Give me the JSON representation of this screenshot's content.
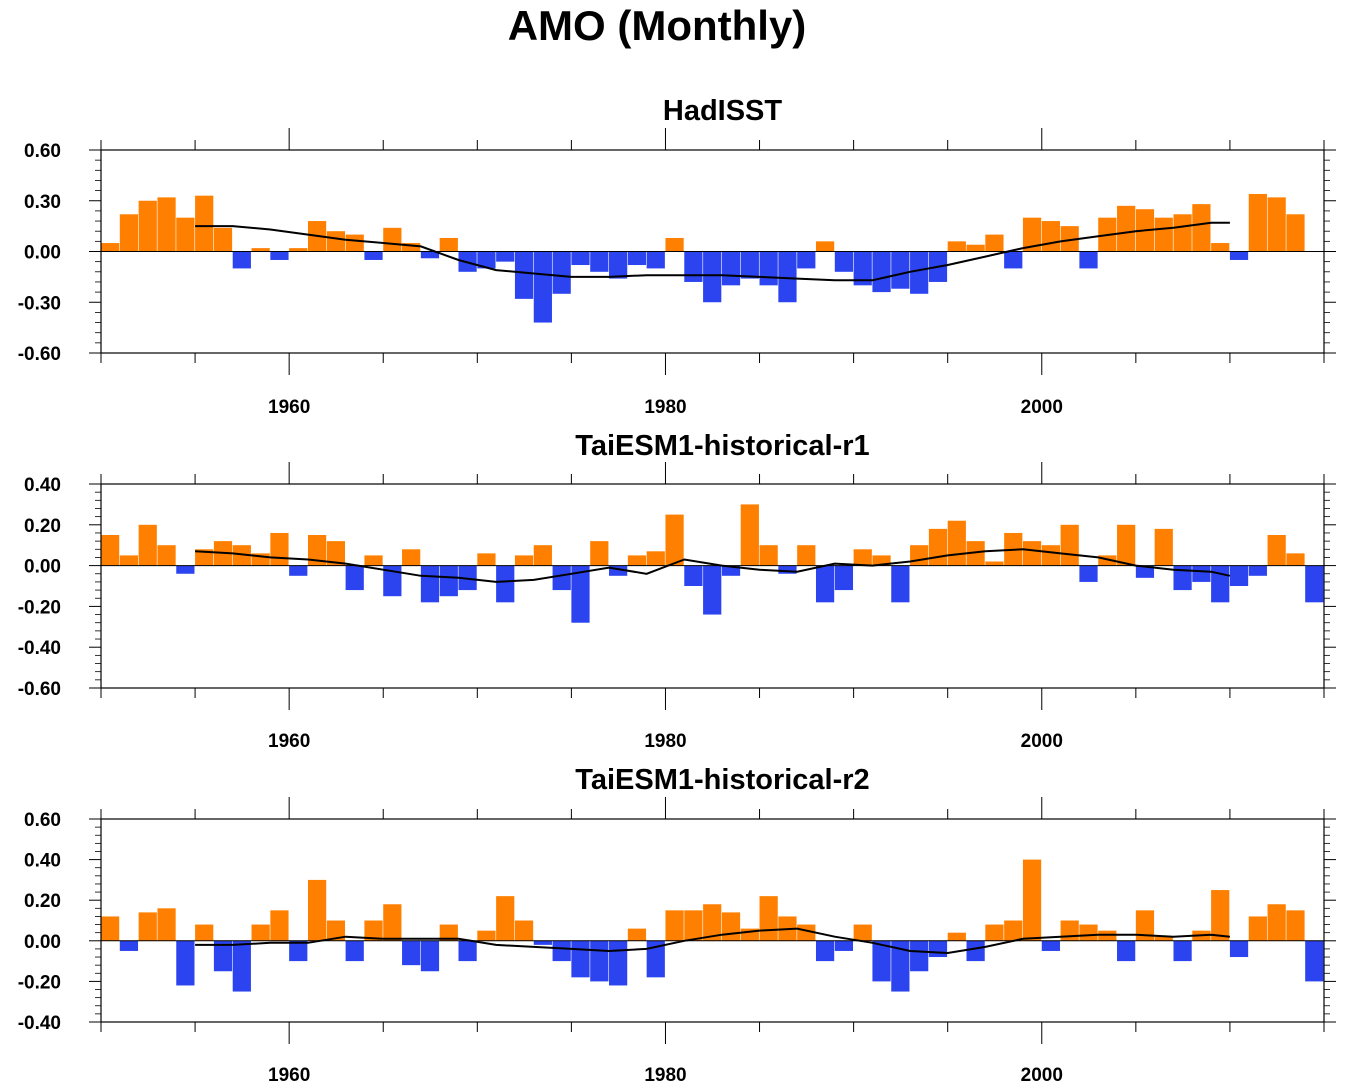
{
  "title": "AMO (Monthly)",
  "colors": {
    "positive": "#ff8000",
    "negative": "#2c44ef",
    "smooth": "#000000",
    "axis": "#000000"
  },
  "chart_data": [
    {
      "type": "bar",
      "title": "HadISST",
      "xlim": [
        1950,
        2015
      ],
      "ylim": [
        -0.6,
        0.6
      ],
      "xticks": [
        1960,
        1980,
        2000
      ],
      "yticks": [
        -0.6,
        -0.3,
        0.0,
        0.3,
        0.6
      ],
      "ytick_labels": [
        "-0.60",
        "-0.30",
        "0.00",
        "0.30",
        "0.60"
      ],
      "x": [
        1950.5,
        1951.5,
        1952.5,
        1953.5,
        1954.5,
        1955.5,
        1956.5,
        1957.5,
        1958.5,
        1959.5,
        1960.5,
        1961.5,
        1962.5,
        1963.5,
        1964.5,
        1965.5,
        1966.5,
        1967.5,
        1968.5,
        1969.5,
        1970.5,
        1971.5,
        1972.5,
        1973.5,
        1974.5,
        1975.5,
        1976.5,
        1977.5,
        1978.5,
        1979.5,
        1980.5,
        1981.5,
        1982.5,
        1983.5,
        1984.5,
        1985.5,
        1986.5,
        1987.5,
        1988.5,
        1989.5,
        1990.5,
        1991.5,
        1992.5,
        1993.5,
        1994.5,
        1995.5,
        1996.5,
        1997.5,
        1998.5,
        1999.5,
        2000.5,
        2001.5,
        2002.5,
        2003.5,
        2004.5,
        2005.5,
        2006.5,
        2007.5,
        2008.5,
        2009.5,
        2010.5,
        2011.5,
        2012.5,
        2013.5,
        2014.5
      ],
      "values": [
        0.05,
        0.22,
        0.3,
        0.32,
        0.2,
        0.33,
        0.14,
        -0.1,
        0.02,
        -0.05,
        0.02,
        0.18,
        0.12,
        0.1,
        -0.05,
        0.14,
        0.05,
        -0.04,
        0.08,
        -0.12,
        -0.1,
        -0.06,
        -0.28,
        -0.42,
        -0.25,
        -0.08,
        -0.12,
        -0.16,
        -0.08,
        -0.1,
        0.08,
        -0.18,
        -0.3,
        -0.2,
        -0.16,
        -0.2,
        -0.3,
        -0.1,
        0.06,
        -0.12,
        -0.2,
        -0.24,
        -0.22,
        -0.25,
        -0.18,
        0.06,
        0.04,
        0.1,
        -0.1,
        0.2,
        0.18,
        0.15,
        -0.1,
        0.2,
        0.27,
        0.25,
        0.2,
        0.22,
        0.28,
        0.05,
        -0.05,
        0.34,
        0.32,
        0.22,
        0.0
      ],
      "smooth_x": [
        1955,
        1957,
        1959,
        1961,
        1963,
        1965,
        1967,
        1969,
        1971,
        1973,
        1975,
        1977,
        1979,
        1981,
        1983,
        1985,
        1987,
        1989,
        1991,
        1993,
        1995,
        1997,
        1999,
        2001,
        2003,
        2005,
        2007,
        2009,
        2010
      ],
      "smooth_y": [
        0.15,
        0.15,
        0.13,
        0.1,
        0.07,
        0.05,
        0.03,
        -0.05,
        -0.11,
        -0.13,
        -0.15,
        -0.15,
        -0.14,
        -0.14,
        -0.14,
        -0.15,
        -0.16,
        -0.17,
        -0.17,
        -0.12,
        -0.08,
        -0.03,
        0.02,
        0.06,
        0.09,
        0.12,
        0.14,
        0.17,
        0.17
      ]
    },
    {
      "type": "bar",
      "title": "TaiESM1-historical-r1",
      "xlim": [
        1950,
        2015
      ],
      "ylim": [
        -0.6,
        0.4
      ],
      "xticks": [
        1960,
        1980,
        2000
      ],
      "yticks": [
        -0.6,
        -0.4,
        -0.2,
        0.0,
        0.2,
        0.4
      ],
      "ytick_labels": [
        "-0.60",
        "-0.40",
        "-0.20",
        "0.00",
        "0.20",
        "0.40"
      ],
      "x": [
        1950.5,
        1951.5,
        1952.5,
        1953.5,
        1954.5,
        1955.5,
        1956.5,
        1957.5,
        1958.5,
        1959.5,
        1960.5,
        1961.5,
        1962.5,
        1963.5,
        1964.5,
        1965.5,
        1966.5,
        1967.5,
        1968.5,
        1969.5,
        1970.5,
        1971.5,
        1972.5,
        1973.5,
        1974.5,
        1975.5,
        1976.5,
        1977.5,
        1978.5,
        1979.5,
        1980.5,
        1981.5,
        1982.5,
        1983.5,
        1984.5,
        1985.5,
        1986.5,
        1987.5,
        1988.5,
        1989.5,
        1990.5,
        1991.5,
        1992.5,
        1993.5,
        1994.5,
        1995.5,
        1996.5,
        1997.5,
        1998.5,
        1999.5,
        2000.5,
        2001.5,
        2002.5,
        2003.5,
        2004.5,
        2005.5,
        2006.5,
        2007.5,
        2008.5,
        2009.5,
        2010.5,
        2011.5,
        2012.5,
        2013.5,
        2014.5
      ],
      "values": [
        0.15,
        0.05,
        0.2,
        0.1,
        -0.04,
        0.08,
        0.12,
        0.1,
        0.06,
        0.16,
        -0.05,
        0.15,
        0.12,
        -0.12,
        0.05,
        -0.15,
        0.08,
        -0.18,
        -0.15,
        -0.12,
        0.06,
        -0.18,
        0.05,
        0.1,
        -0.12,
        -0.28,
        0.12,
        -0.05,
        0.05,
        0.07,
        0.25,
        -0.1,
        -0.24,
        -0.05,
        0.3,
        0.1,
        -0.04,
        0.1,
        -0.18,
        -0.12,
        0.08,
        0.05,
        -0.18,
        0.1,
        0.18,
        0.22,
        0.12,
        0.02,
        0.16,
        0.12,
        0.1,
        0.2,
        -0.08,
        0.05,
        0.2,
        -0.06,
        0.18,
        -0.12,
        -0.08,
        -0.18,
        -0.1,
        -0.05,
        0.15,
        0.06,
        -0.18
      ],
      "smooth_x": [
        1955,
        1957,
        1959,
        1961,
        1963,
        1965,
        1967,
        1969,
        1971,
        1973,
        1975,
        1977,
        1979,
        1981,
        1983,
        1985,
        1987,
        1989,
        1991,
        1993,
        1995,
        1997,
        1999,
        2001,
        2003,
        2005,
        2007,
        2009,
        2010
      ],
      "smooth_y": [
        0.07,
        0.06,
        0.04,
        0.03,
        0.01,
        -0.02,
        -0.05,
        -0.06,
        -0.08,
        -0.07,
        -0.04,
        -0.01,
        -0.04,
        0.03,
        0.0,
        -0.02,
        -0.03,
        0.01,
        0.0,
        0.02,
        0.05,
        0.07,
        0.08,
        0.06,
        0.04,
        0.0,
        -0.02,
        -0.03,
        -0.05
      ]
    },
    {
      "type": "bar",
      "title": "TaiESM1-historical-r2",
      "xlim": [
        1950,
        2015
      ],
      "ylim": [
        -0.4,
        0.6
      ],
      "xticks": [
        1960,
        1980,
        2000
      ],
      "yticks": [
        -0.4,
        -0.2,
        0.0,
        0.2,
        0.4,
        0.6
      ],
      "ytick_labels": [
        "-0.40",
        "-0.20",
        "0.00",
        "0.20",
        "0.40",
        "0.60"
      ],
      "x": [
        1950.5,
        1951.5,
        1952.5,
        1953.5,
        1954.5,
        1955.5,
        1956.5,
        1957.5,
        1958.5,
        1959.5,
        1960.5,
        1961.5,
        1962.5,
        1963.5,
        1964.5,
        1965.5,
        1966.5,
        1967.5,
        1968.5,
        1969.5,
        1970.5,
        1971.5,
        1972.5,
        1973.5,
        1974.5,
        1975.5,
        1976.5,
        1977.5,
        1978.5,
        1979.5,
        1980.5,
        1981.5,
        1982.5,
        1983.5,
        1984.5,
        1985.5,
        1986.5,
        1987.5,
        1988.5,
        1989.5,
        1990.5,
        1991.5,
        1992.5,
        1993.5,
        1994.5,
        1995.5,
        1996.5,
        1997.5,
        1998.5,
        1999.5,
        2000.5,
        2001.5,
        2002.5,
        2003.5,
        2004.5,
        2005.5,
        2006.5,
        2007.5,
        2008.5,
        2009.5,
        2010.5,
        2011.5,
        2012.5,
        2013.5,
        2014.5
      ],
      "values": [
        0.12,
        -0.05,
        0.14,
        0.16,
        -0.22,
        0.08,
        -0.15,
        -0.25,
        0.08,
        0.15,
        -0.1,
        0.3,
        0.1,
        -0.1,
        0.1,
        0.18,
        -0.12,
        -0.15,
        0.08,
        -0.1,
        0.05,
        0.22,
        0.1,
        -0.02,
        -0.1,
        -0.18,
        -0.2,
        -0.22,
        0.06,
        -0.18,
        0.15,
        0.15,
        0.18,
        0.14,
        0.06,
        0.22,
        0.12,
        0.08,
        -0.1,
        -0.05,
        0.08,
        -0.2,
        -0.25,
        -0.15,
        -0.08,
        0.04,
        -0.1,
        0.08,
        0.1,
        0.4,
        -0.05,
        0.1,
        0.08,
        0.05,
        -0.1,
        0.15,
        0.02,
        -0.1,
        0.05,
        0.25,
        -0.08,
        0.12,
        0.18,
        0.15,
        -0.2
      ],
      "smooth_x": [
        1955,
        1957,
        1959,
        1961,
        1963,
        1965,
        1967,
        1969,
        1971,
        1973,
        1975,
        1977,
        1979,
        1981,
        1983,
        1985,
        1987,
        1989,
        1991,
        1993,
        1995,
        1997,
        1999,
        2001,
        2003,
        2005,
        2007,
        2009,
        2010
      ],
      "smooth_y": [
        -0.02,
        -0.02,
        -0.01,
        -0.01,
        0.02,
        0.01,
        0.01,
        0.01,
        -0.02,
        -0.03,
        -0.04,
        -0.05,
        -0.04,
        0.0,
        0.03,
        0.05,
        0.06,
        0.02,
        -0.01,
        -0.05,
        -0.06,
        -0.03,
        0.01,
        0.02,
        0.03,
        0.03,
        0.02,
        0.03,
        0.02
      ]
    }
  ]
}
